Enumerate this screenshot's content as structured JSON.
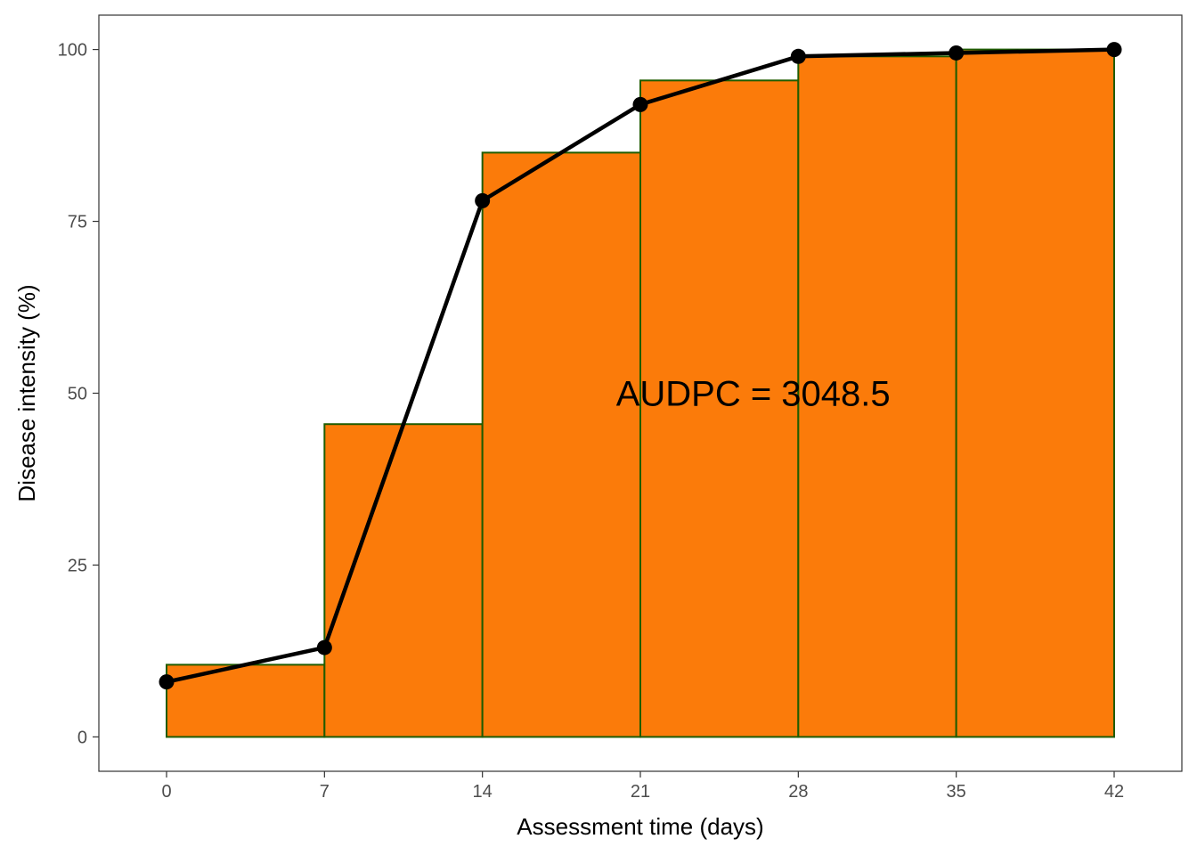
{
  "chart_data": {
    "type": "bar",
    "subtype": "audpc-rectangles-with-line",
    "title": "",
    "xlabel": "Assessment time (days)",
    "ylabel": "Disease intensity (%)",
    "xlim": [
      -3,
      45
    ],
    "ylim": [
      -5,
      105
    ],
    "xticks": [
      0,
      7,
      14,
      21,
      28,
      35,
      42
    ],
    "yticks": [
      0,
      25,
      50,
      75,
      100
    ],
    "grid": false,
    "rectangles": [
      {
        "x_start": 0,
        "x_end": 7,
        "height": 10.5
      },
      {
        "x_start": 7,
        "x_end": 14,
        "height": 45.5
      },
      {
        "x_start": 14,
        "x_end": 21,
        "height": 85
      },
      {
        "x_start": 21,
        "x_end": 28,
        "height": 95.5
      },
      {
        "x_start": 28,
        "x_end": 35,
        "height": 99
      },
      {
        "x_start": 35,
        "x_end": 42,
        "height": 100
      }
    ],
    "series": [
      {
        "x": [
          0,
          7,
          14,
          21,
          28,
          35,
          42
        ],
        "y": [
          8,
          13,
          78,
          92,
          99,
          99.5,
          100
        ]
      }
    ],
    "annotation": {
      "text": "AUDPC = 3048.5",
      "x": 26,
      "y": 50
    },
    "colors": {
      "bar_fill": "#FB7B0A",
      "bar_outline": "#1F5C00",
      "line": "#000000",
      "panel_border": "#333333",
      "tick_text": "#4d4d4d"
    }
  }
}
